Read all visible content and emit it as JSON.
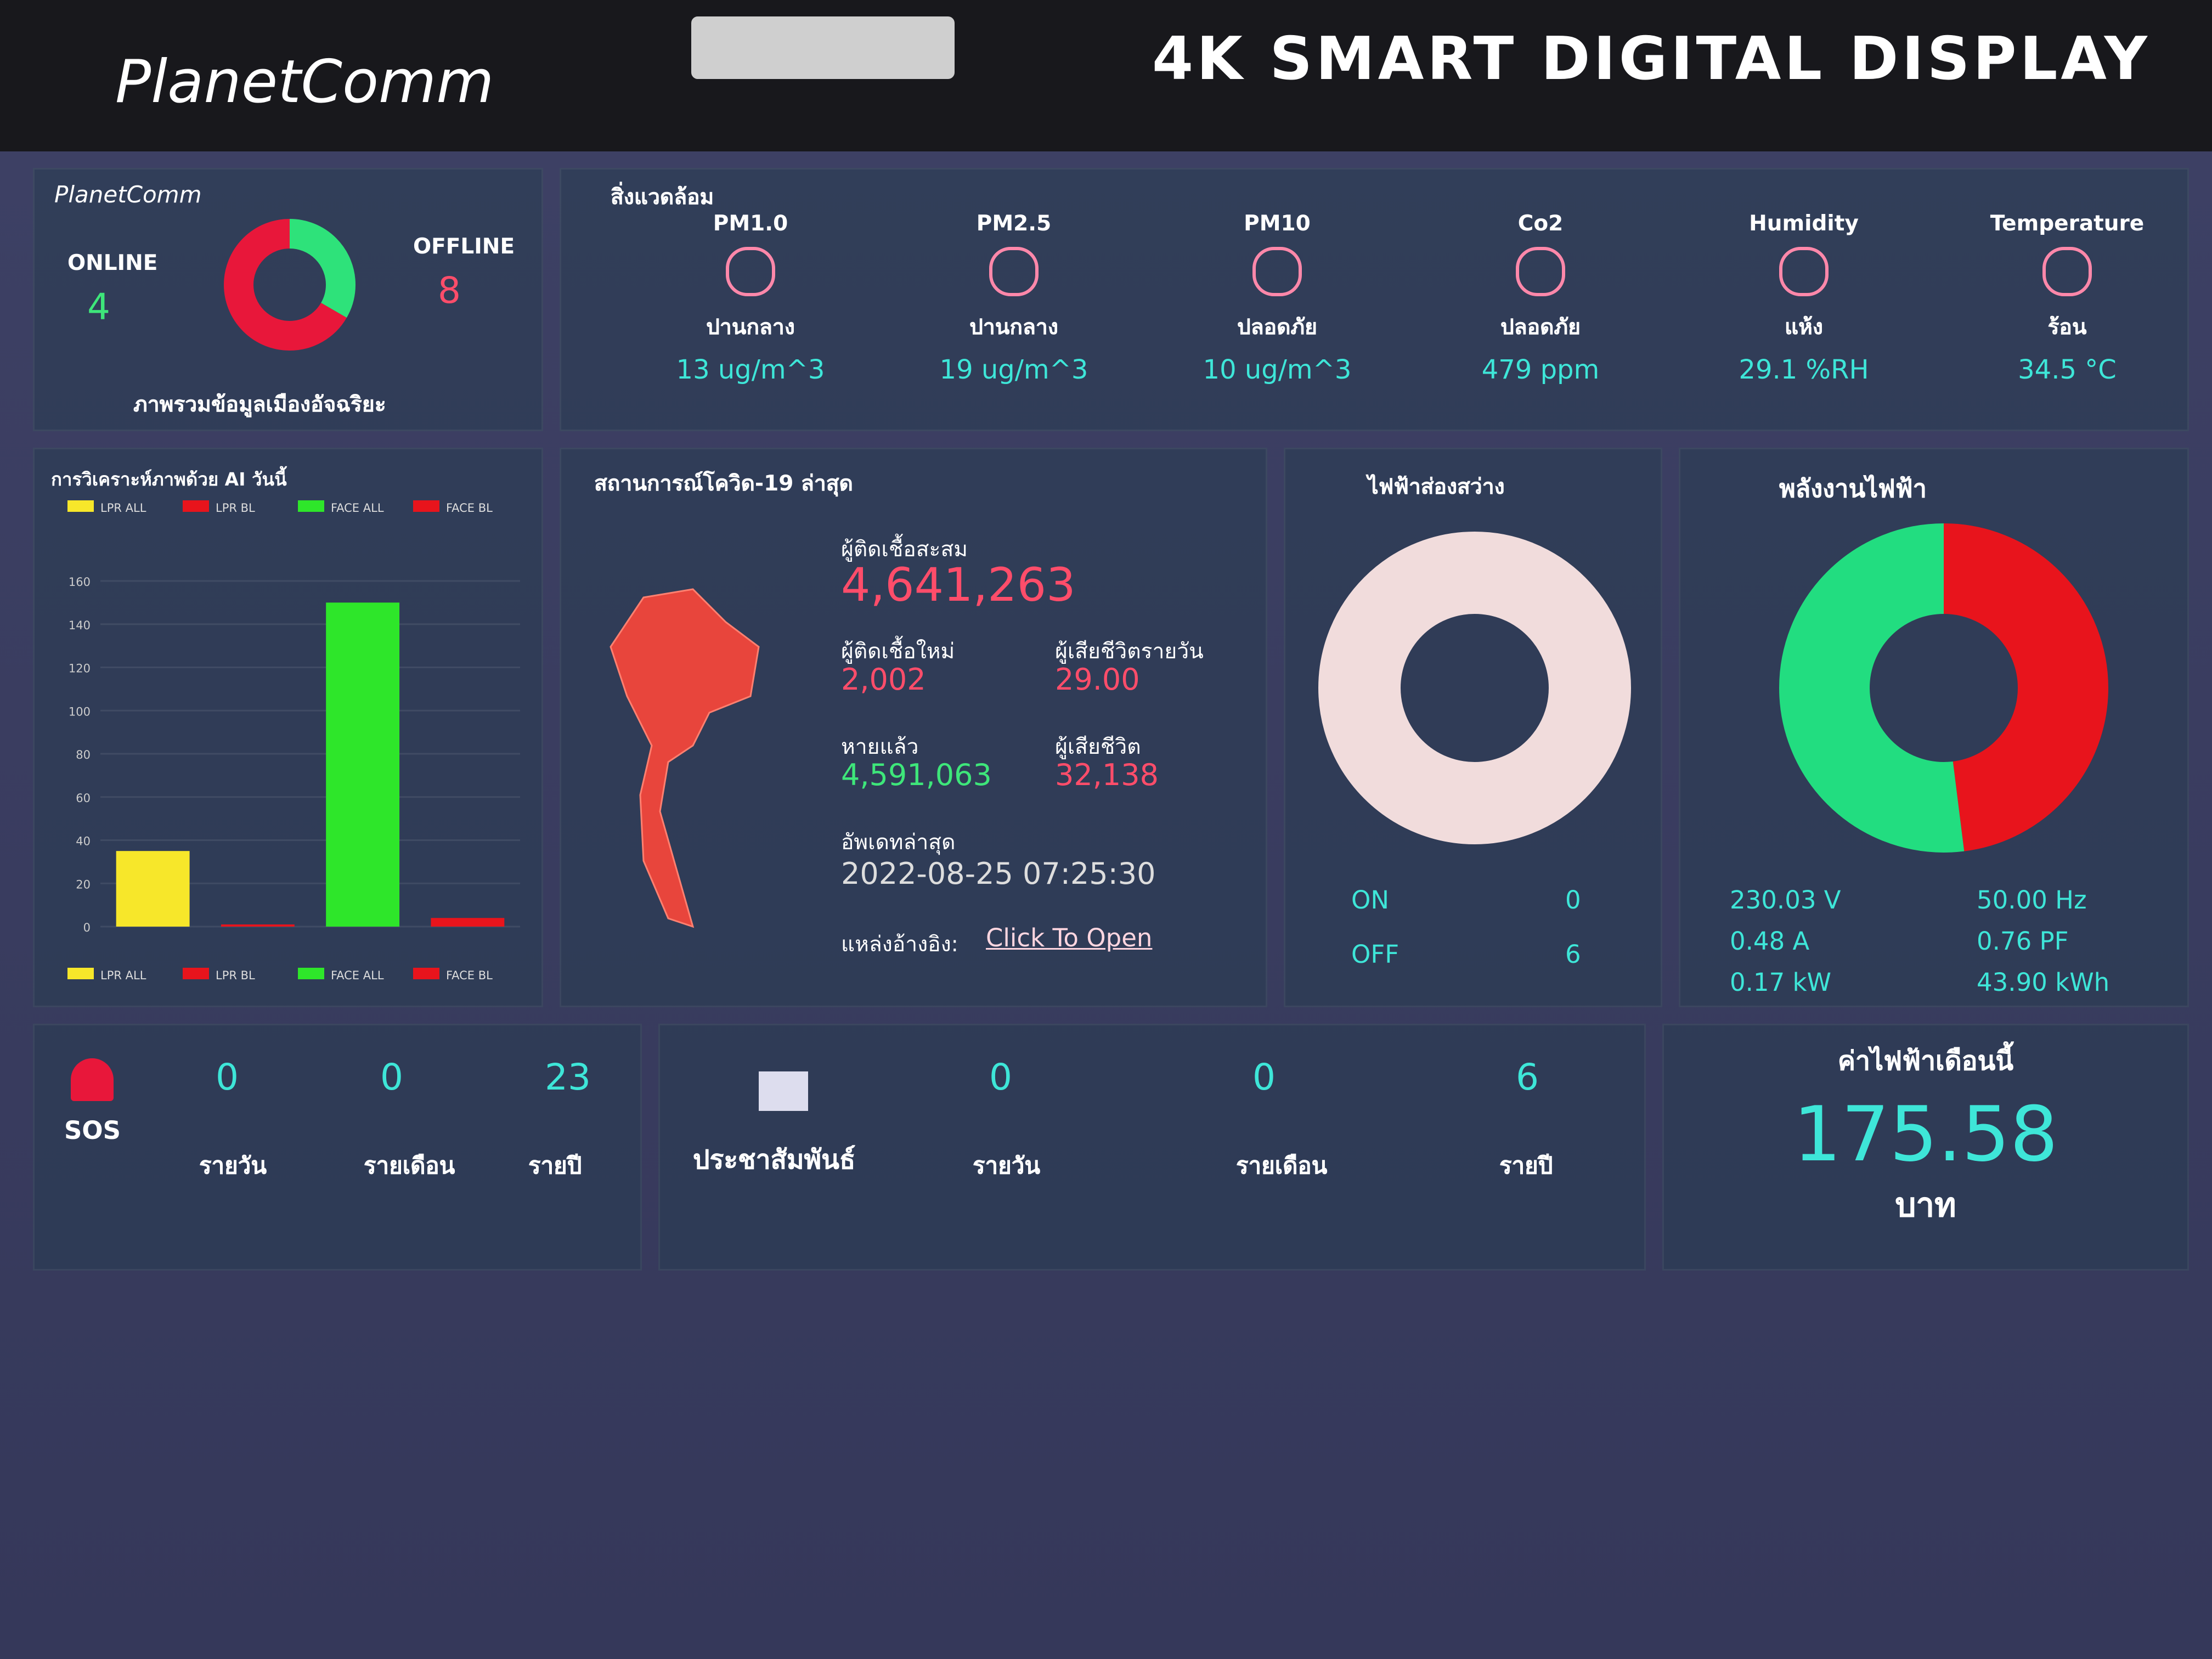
{
  "header": {
    "brand": "PlanetComm",
    "banner": "4K SMART DIGITAL DISPLAY"
  },
  "status": {
    "brand": "PlanetComm",
    "online_label": "ONLINE",
    "online": 4,
    "offline_label": "OFFLINE",
    "offline": 8,
    "online_color": "#2ee27a",
    "offline_color": "#e8173a",
    "caption": "ภาพรวมข้อมูลเมืองอัจฉริยะ"
  },
  "environment": {
    "title": "สิ่งแวดล้อม",
    "sensors": [
      {
        "name": "PM1.0",
        "status": "ปานกลาง",
        "value": "13 ug/m^3"
      },
      {
        "name": "PM2.5",
        "status": "ปานกลาง",
        "value": "19 ug/m^3"
      },
      {
        "name": "PM10",
        "status": "ปลอดภัย",
        "value": "10 ug/m^3"
      },
      {
        "name": "Co2",
        "status": "ปลอดภัย",
        "value": "479 ppm"
      },
      {
        "name": "Humidity",
        "status": "แห้ง",
        "value": "29.1 %RH"
      },
      {
        "name": "Temperature",
        "status": "ร้อน",
        "value": "34.5 °C"
      }
    ]
  },
  "chart_data": {
    "type": "bar",
    "title": "การวิเคราะห์ภาพด้วย AI วันนี้",
    "categories": [
      "LPR ALL",
      "LPR BL",
      "FACE ALL",
      "FACE BL"
    ],
    "values": [
      35,
      1,
      150,
      4
    ],
    "colors": [
      "#f7e72a",
      "#e8141c",
      "#2ee62a",
      "#e8141c"
    ],
    "ylim": [
      0,
      160
    ],
    "yticks": [
      0,
      20,
      40,
      60,
      80,
      100,
      120,
      140,
      160
    ]
  },
  "covid": {
    "title": "สถานการณ์โควิด-19 ล่าสุด",
    "total_label": "ผู้ติดเชื้อสะสม",
    "total": "4,641,263",
    "new_label": "ผู้ติดเชื้อใหม่",
    "new": "2,002",
    "daily_deaths_label": "ผู้เสียชีวิตรายวัน",
    "daily_deaths": "29.00",
    "recovered_label": "หายแล้ว",
    "recovered": "4,591,063",
    "deaths_label": "ผู้เสียชีวิต",
    "deaths": "32,138",
    "updated_label": "อัพเดทล่าสุด",
    "updated": "2022-08-25 07:25:30",
    "source_label": "แหล่งอ้างอิง:",
    "source_link": "Click To Open"
  },
  "lighting": {
    "title": "ไฟฟ้าส่องสว่าง",
    "on_label": "ON",
    "on": 0,
    "off_label": "OFF",
    "off": 6,
    "on_color": "#f5e04a",
    "off_color": "#f1dcdc"
  },
  "power": {
    "title": "พลังงานไฟฟ้า",
    "segments": [
      {
        "color": "#e8141c",
        "value": 48
      },
      {
        "color": "#22dd80",
        "value": 52
      }
    ],
    "readings": [
      "230.03 V",
      "50.00 Hz",
      "0.48 A",
      "0.76 PF",
      "0.17 kW",
      "43.90 kWh"
    ]
  },
  "sos": {
    "label": "SOS",
    "items": [
      {
        "value": 0,
        "label": "รายวัน"
      },
      {
        "value": 0,
        "label": "รายเดือน"
      },
      {
        "value": 23,
        "label": "รายปี"
      }
    ]
  },
  "pr": {
    "label": "ประชาสัมพันธ์",
    "items": [
      {
        "value": 0,
        "label": "รายวัน"
      },
      {
        "value": 0,
        "label": "รายเดือน"
      },
      {
        "value": 6,
        "label": "รายปี"
      }
    ]
  },
  "bill": {
    "title": "ค่าไฟฟ้าเดือนนี้",
    "value": "175.58",
    "unit": "บาท"
  }
}
